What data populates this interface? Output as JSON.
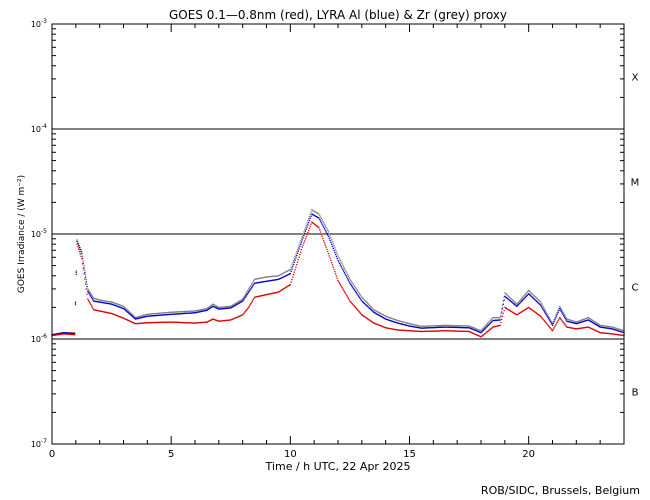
{
  "chart_data": {
    "type": "line",
    "title": "GOES 0.1—0.8nm (red), LYRA Al (blue) & Zr (grey) proxy",
    "xlabel": "Time / h UTC, 22 Apr 2025",
    "ylabel": "GOES Irradiance / (W m⁻²)",
    "credit": "ROB/SIDC, Brussels, Belgium",
    "xlim": [
      0,
      24
    ],
    "ylim": [
      1e-07,
      0.001
    ],
    "yscale": "log",
    "grid": false,
    "x_ticks": [
      {
        "value": 0,
        "label": "0"
      },
      {
        "value": 5,
        "label": "5"
      },
      {
        "value": 10,
        "label": "10"
      },
      {
        "value": 15,
        "label": "15"
      },
      {
        "value": 20,
        "label": "20"
      }
    ],
    "y_ticks": [
      {
        "value": 0.001,
        "mant": "10",
        "exp": "-3"
      },
      {
        "value": 0.0001,
        "mant": "10",
        "exp": "-4"
      },
      {
        "value": 1e-05,
        "mant": "10",
        "exp": "-5"
      },
      {
        "value": 1e-06,
        "mant": "10",
        "exp": "-6"
      },
      {
        "value": 1e-07,
        "mant": "10",
        "exp": "-7"
      }
    ],
    "flare_classes": [
      {
        "label": "X",
        "low": 0.0001
      },
      {
        "label": "M",
        "low": 1e-05
      },
      {
        "label": "C",
        "low": 1e-06
      },
      {
        "label": "B",
        "low": 1e-07
      }
    ],
    "class_lines": [
      0.0001,
      1e-05,
      1e-06
    ],
    "series": [
      {
        "color": "#808080",
        "values": [
          [
            0,
            1.1e-06
          ],
          [
            0.5,
            1.15e-06
          ],
          [
            0.95,
            1.15e-06
          ],
          [
            1.05,
            8.8e-06
          ],
          [
            1.25,
            6.8e-06
          ],
          [
            1.5,
            3e-06
          ],
          [
            1.75,
            2.45e-06
          ],
          [
            2.0,
            2.35e-06
          ],
          [
            2.5,
            2.25e-06
          ],
          [
            3.0,
            2.05e-06
          ],
          [
            3.5,
            1.6e-06
          ],
          [
            4.0,
            1.72e-06
          ],
          [
            5.0,
            1.8e-06
          ],
          [
            6.0,
            1.85e-06
          ],
          [
            6.5,
            1.95e-06
          ],
          [
            6.75,
            2.15e-06
          ],
          [
            7.0,
            2e-06
          ],
          [
            7.5,
            2.05e-06
          ],
          [
            8.0,
            2.4e-06
          ],
          [
            8.25,
            3e-06
          ],
          [
            8.5,
            3.7e-06
          ],
          [
            9.0,
            3.9e-06
          ],
          [
            9.5,
            4e-06
          ],
          [
            10.0,
            4.6e-06
          ],
          [
            10.5,
            9.5e-06
          ],
          [
            10.9,
            1.7e-05
          ],
          [
            11.2,
            1.55e-05
          ],
          [
            11.6,
            1.05e-05
          ],
          [
            12.0,
            6.2e-06
          ],
          [
            12.5,
            3.7e-06
          ],
          [
            13.0,
            2.5e-06
          ],
          [
            13.5,
            1.9e-06
          ],
          [
            14.0,
            1.65e-06
          ],
          [
            14.5,
            1.5e-06
          ],
          [
            15.0,
            1.4e-06
          ],
          [
            15.5,
            1.32e-06
          ],
          [
            16.5,
            1.35e-06
          ],
          [
            17.5,
            1.33e-06
          ],
          [
            18.0,
            1.2e-06
          ],
          [
            18.5,
            1.6e-06
          ],
          [
            18.8,
            1.6e-06
          ],
          [
            19.0,
            2.75e-06
          ],
          [
            19.5,
            2.15e-06
          ],
          [
            20.0,
            2.9e-06
          ],
          [
            20.5,
            2.25e-06
          ],
          [
            21.0,
            1.4e-06
          ],
          [
            21.3,
            2.05e-06
          ],
          [
            21.6,
            1.55e-06
          ],
          [
            22.0,
            1.45e-06
          ],
          [
            22.5,
            1.6e-06
          ],
          [
            23.0,
            1.35e-06
          ],
          [
            23.5,
            1.3e-06
          ],
          [
            24.0,
            1.2e-06
          ]
        ]
      },
      {
        "color": "#0000d0",
        "values": [
          [
            0,
            1.1e-06
          ],
          [
            0.5,
            1.15e-06
          ],
          [
            0.95,
            1.12e-06
          ],
          [
            1.05,
            8.5e-06
          ],
          [
            1.25,
            6.5e-06
          ],
          [
            1.5,
            2.85e-06
          ],
          [
            1.75,
            2.3e-06
          ],
          [
            2.0,
            2.25e-06
          ],
          [
            2.5,
            2.15e-06
          ],
          [
            3.0,
            1.95e-06
          ],
          [
            3.5,
            1.55e-06
          ],
          [
            4.0,
            1.65e-06
          ],
          [
            5.0,
            1.72e-06
          ],
          [
            6.0,
            1.78e-06
          ],
          [
            6.5,
            1.88e-06
          ],
          [
            6.75,
            2.05e-06
          ],
          [
            7.0,
            1.93e-06
          ],
          [
            7.5,
            1.98e-06
          ],
          [
            8.0,
            2.3e-06
          ],
          [
            8.25,
            2.8e-06
          ],
          [
            8.5,
            3.4e-06
          ],
          [
            9.0,
            3.55e-06
          ],
          [
            9.5,
            3.7e-06
          ],
          [
            10.0,
            4.2e-06
          ],
          [
            10.5,
            8.8e-06
          ],
          [
            10.9,
            1.55e-05
          ],
          [
            11.2,
            1.42e-05
          ],
          [
            11.6,
            9.5e-06
          ],
          [
            12.0,
            5.6e-06
          ],
          [
            12.5,
            3.4e-06
          ],
          [
            13.0,
            2.3e-06
          ],
          [
            13.5,
            1.8e-06
          ],
          [
            14.0,
            1.55e-06
          ],
          [
            14.5,
            1.42e-06
          ],
          [
            15.0,
            1.33e-06
          ],
          [
            15.5,
            1.27e-06
          ],
          [
            16.5,
            1.3e-06
          ],
          [
            17.5,
            1.28e-06
          ],
          [
            18.0,
            1.15e-06
          ],
          [
            18.5,
            1.5e-06
          ],
          [
            18.8,
            1.52e-06
          ],
          [
            19.0,
            2.55e-06
          ],
          [
            19.5,
            2.05e-06
          ],
          [
            20.0,
            2.7e-06
          ],
          [
            20.5,
            2.1e-06
          ],
          [
            21.0,
            1.35e-06
          ],
          [
            21.3,
            1.95e-06
          ],
          [
            21.6,
            1.48e-06
          ],
          [
            22.0,
            1.4e-06
          ],
          [
            22.5,
            1.52e-06
          ],
          [
            23.0,
            1.3e-06
          ],
          [
            23.5,
            1.25e-06
          ],
          [
            24.0,
            1.15e-06
          ]
        ]
      },
      {
        "color": "#e00000",
        "values": [
          [
            0,
            1.08e-06
          ],
          [
            0.5,
            1.12e-06
          ],
          [
            0.95,
            1.1e-06
          ],
          [
            1.05,
            8e-06
          ],
          [
            1.25,
            5.8e-06
          ],
          [
            1.5,
            2.4e-06
          ],
          [
            1.75,
            1.9e-06
          ],
          [
            2.0,
            1.85e-06
          ],
          [
            2.5,
            1.75e-06
          ],
          [
            3.0,
            1.58e-06
          ],
          [
            3.5,
            1.4e-06
          ],
          [
            4.0,
            1.43e-06
          ],
          [
            5.0,
            1.45e-06
          ],
          [
            6.0,
            1.42e-06
          ],
          [
            6.5,
            1.45e-06
          ],
          [
            6.75,
            1.55e-06
          ],
          [
            7.0,
            1.48e-06
          ],
          [
            7.5,
            1.52e-06
          ],
          [
            8.0,
            1.7e-06
          ],
          [
            8.25,
            2e-06
          ],
          [
            8.5,
            2.5e-06
          ],
          [
            9.0,
            2.65e-06
          ],
          [
            9.5,
            2.8e-06
          ],
          [
            10.0,
            3.3e-06
          ],
          [
            10.5,
            7.5e-06
          ],
          [
            10.9,
            1.3e-05
          ],
          [
            11.2,
            1.15e-05
          ],
          [
            11.6,
            6.5e-06
          ],
          [
            12.0,
            3.6e-06
          ],
          [
            12.5,
            2.3e-06
          ],
          [
            13.0,
            1.7e-06
          ],
          [
            13.5,
            1.42e-06
          ],
          [
            14.0,
            1.28e-06
          ],
          [
            14.5,
            1.22e-06
          ],
          [
            15.0,
            1.2e-06
          ],
          [
            15.5,
            1.18e-06
          ],
          [
            16.5,
            1.2e-06
          ],
          [
            17.5,
            1.18e-06
          ],
          [
            18.0,
            1.05e-06
          ],
          [
            18.5,
            1.3e-06
          ],
          [
            18.8,
            1.35e-06
          ],
          [
            19.0,
            2e-06
          ],
          [
            19.5,
            1.7e-06
          ],
          [
            20.0,
            2e-06
          ],
          [
            20.5,
            1.65e-06
          ],
          [
            21.0,
            1.2e-06
          ],
          [
            21.3,
            1.6e-06
          ],
          [
            21.6,
            1.3e-06
          ],
          [
            22.0,
            1.25e-06
          ],
          [
            22.5,
            1.3e-06
          ],
          [
            23.0,
            1.15e-06
          ],
          [
            23.5,
            1.12e-06
          ],
          [
            24.0,
            1.08e-06
          ]
        ]
      }
    ]
  }
}
